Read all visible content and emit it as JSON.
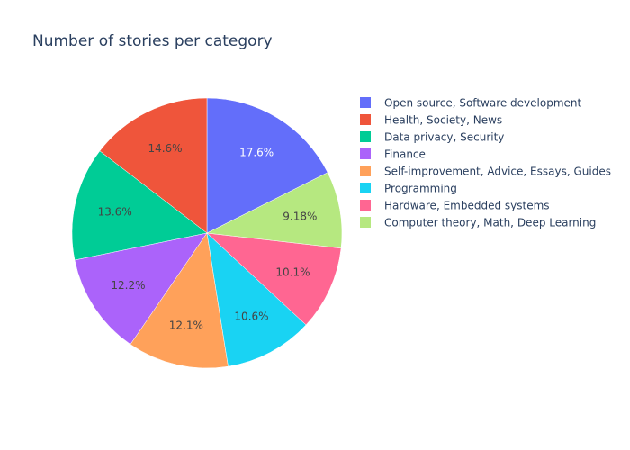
{
  "chart_data": {
    "type": "pie",
    "title": "Number of stories per category",
    "labels": [
      "Open source, Software development",
      "Health, Society, News",
      "Data privacy, Security",
      "Finance",
      "Self-improvement, Advice, Essays, Guides",
      "Programming",
      "Hardware, Embedded systems",
      "Computer theory, Math, Deep Learning"
    ],
    "values": [
      17.6,
      14.6,
      13.6,
      12.2,
      12.1,
      10.6,
      10.1,
      9.18
    ],
    "text_labels": [
      "17.6%",
      "14.6%",
      "13.6%",
      "12.2%",
      "12.1%",
      "10.6%",
      "10.1%",
      "9.18%"
    ],
    "colors": [
      "#636efa",
      "#ef553b",
      "#00cc96",
      "#ab63fa",
      "#ffa15a",
      "#19d3f3",
      "#ff6692",
      "#b6e880"
    ],
    "label_colors": [
      "#ffffff",
      "#444444",
      "#444444",
      "#444444",
      "#444444",
      "#444444",
      "#444444",
      "#444444"
    ],
    "direction": "counterclockwise",
    "legend_position": "right"
  }
}
